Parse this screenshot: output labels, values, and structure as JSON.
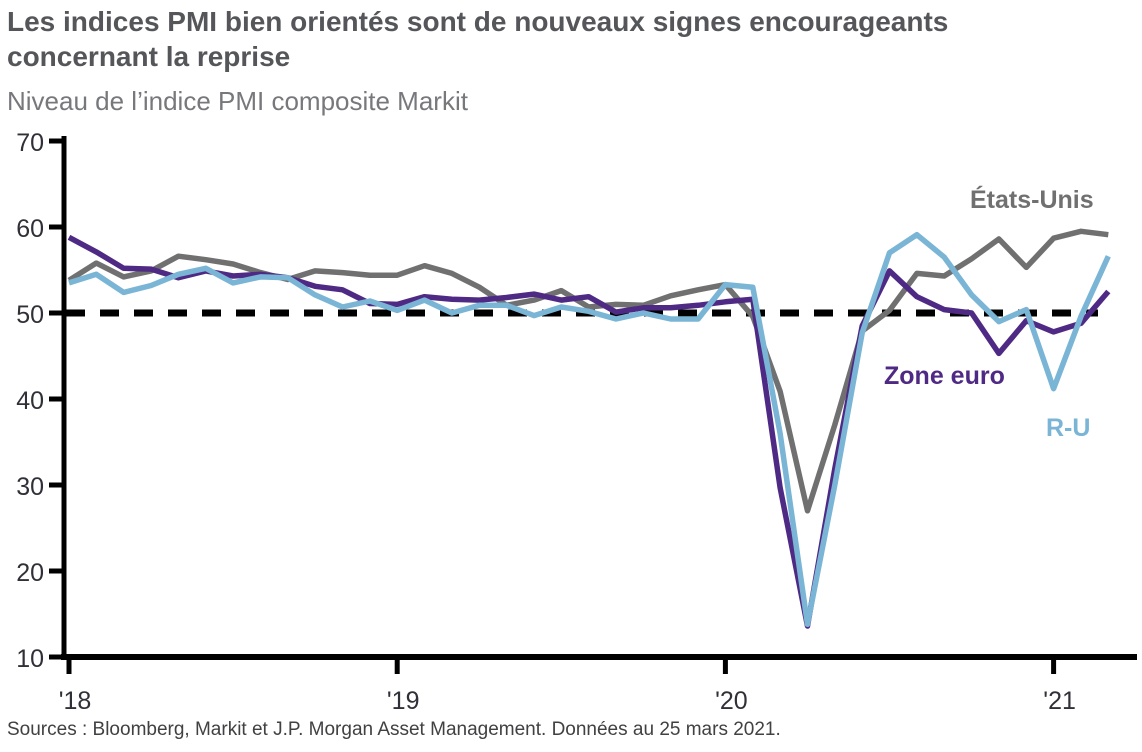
{
  "page": {
    "title_line1": "Les indices PMI bien orientés sont de nouveaux signes encourageants",
    "title_line2": "concernant la reprise",
    "subtitle": "Niveau de l’indice PMI composite Markit",
    "source": "Sources : Bloomberg, Markit et J.P. Morgan Asset Management. Données au 25 mars 2021."
  },
  "colors": {
    "title": "#55565a",
    "subtitle": "#77787c",
    "axis": "#000000",
    "tick_label": "#303038",
    "reference_line": "#000000",
    "us": "#707070",
    "euro": "#4f2a85",
    "uk": "#7ab5d6"
  },
  "chart_data": {
    "type": "line",
    "title": "Les indices PMI bien orientés sont de nouveaux signes encourageants concernant la reprise",
    "subtitle": "Niveau de l’indice PMI composite Markit",
    "source": "Sources : Bloomberg, Markit et J.P. Morgan Asset Management. Données au 25 mars 2021.",
    "x_start": "2018-01",
    "x_end": "2021-03",
    "x_frequency": "monthly",
    "x_tick_labels": [
      "'18",
      "'19",
      "'20",
      "'21"
    ],
    "x_tick_month_indices": [
      0,
      12,
      24,
      36
    ],
    "y_ticks": [
      10,
      20,
      30,
      40,
      50,
      60,
      70
    ],
    "ylim": [
      10,
      70
    ],
    "grid": false,
    "legend_position": "inline labels near line ends",
    "reference_line": {
      "value": 50,
      "style": "dashed",
      "color": "#000000"
    },
    "series": [
      {
        "name": "États-Unis",
        "color": "#707070",
        "values": [
          53.8,
          55.8,
          54.2,
          54.9,
          56.6,
          56.2,
          55.7,
          54.7,
          53.9,
          54.9,
          54.7,
          54.4,
          54.4,
          55.5,
          54.6,
          53.0,
          50.9,
          51.5,
          52.6,
          50.7,
          51.0,
          50.9,
          52.0,
          52.7,
          53.3,
          49.6,
          40.9,
          27.0,
          37.0,
          47.9,
          50.3,
          54.6,
          54.3,
          56.3,
          58.6,
          55.3,
          58.7,
          59.5,
          59.1
        ]
      },
      {
        "name": "Zone euro",
        "color": "#4f2a85",
        "values": [
          58.8,
          57.1,
          55.2,
          55.1,
          54.1,
          54.9,
          54.3,
          54.5,
          54.1,
          53.1,
          52.7,
          51.1,
          51.0,
          51.9,
          51.6,
          51.5,
          51.8,
          52.2,
          51.5,
          51.9,
          50.1,
          50.6,
          50.6,
          50.9,
          51.3,
          51.6,
          29.7,
          13.6,
          31.9,
          48.5,
          54.9,
          51.9,
          50.4,
          50.0,
          45.3,
          49.1,
          47.8,
          48.8,
          52.5
        ]
      },
      {
        "name": "R-U",
        "color": "#7ab5d6",
        "values": [
          53.5,
          54.5,
          52.4,
          53.2,
          54.5,
          55.2,
          53.5,
          54.2,
          54.1,
          52.1,
          50.7,
          51.4,
          50.3,
          51.5,
          50.0,
          50.9,
          50.9,
          49.7,
          50.7,
          50.2,
          49.3,
          50.0,
          49.3,
          49.3,
          53.3,
          53.0,
          36.0,
          13.8,
          30.0,
          47.7,
          57.0,
          59.1,
          56.5,
          52.1,
          49.0,
          50.4,
          41.2,
          49.6,
          56.6
        ]
      }
    ]
  }
}
